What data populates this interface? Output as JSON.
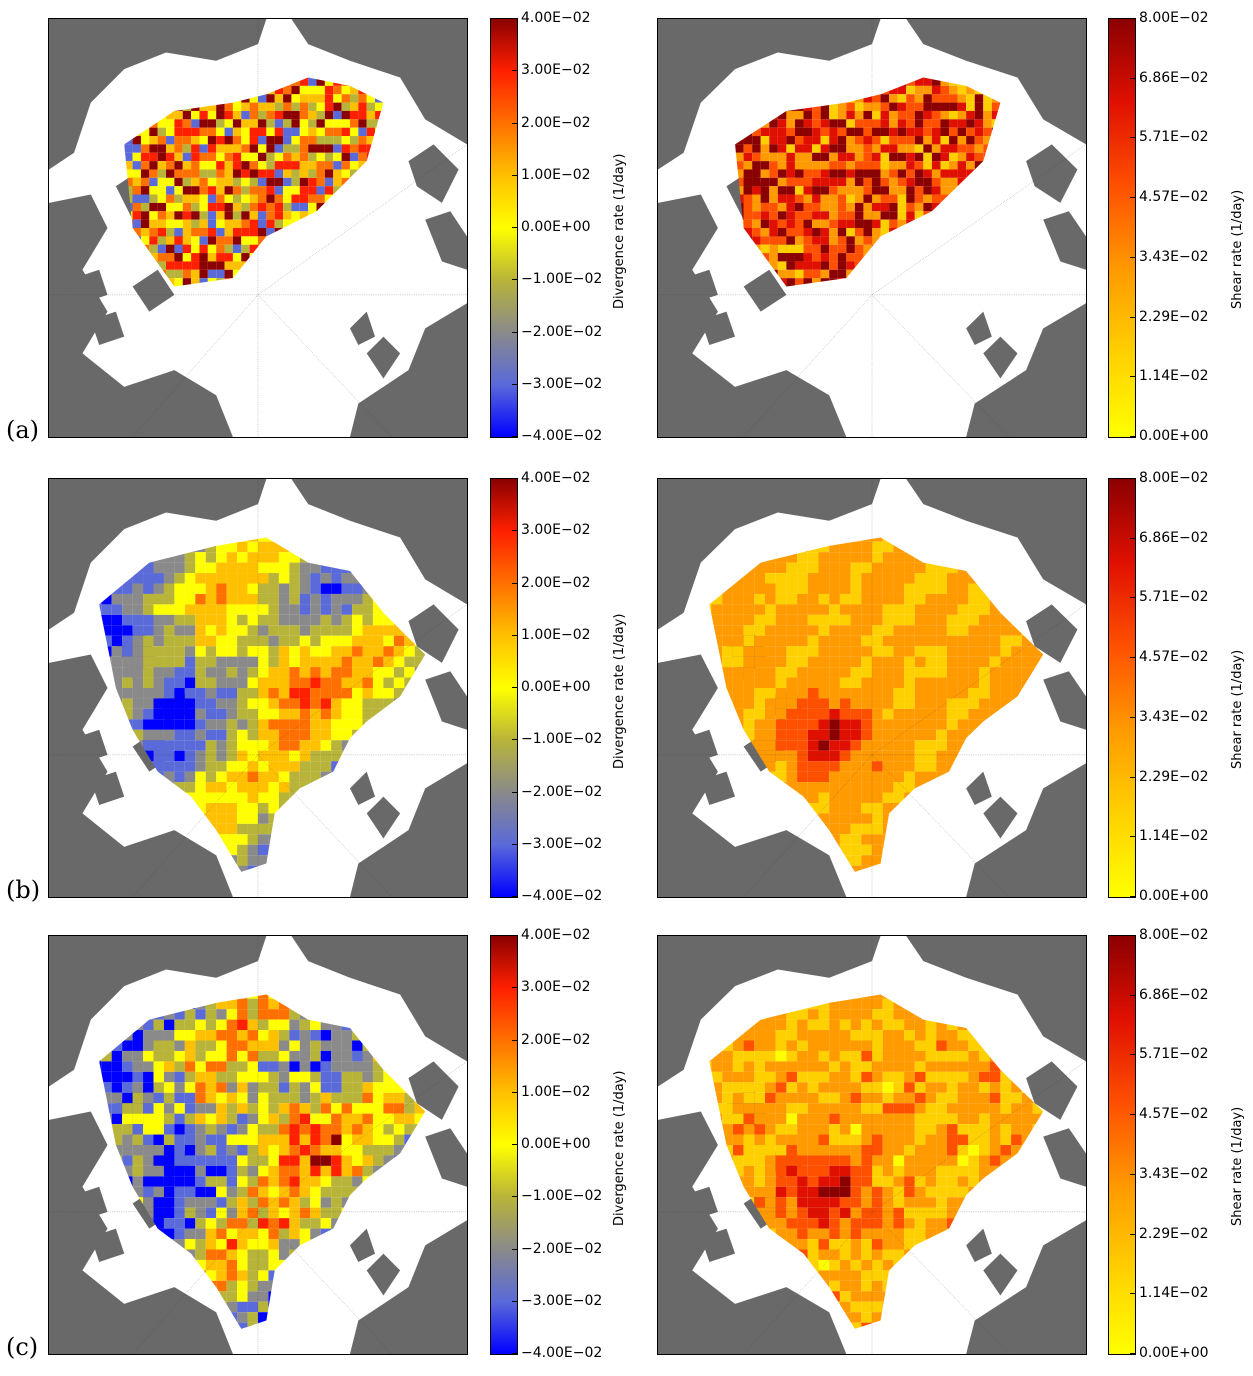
{
  "row_labels": [
    "(a)",
    "(b)",
    "(c)"
  ],
  "colors": {
    "land": "#696969",
    "divergence_scale": [
      "#0000ff",
      "#5a6ad9",
      "#8a8a8a",
      "#b8b43a",
      "#ffff00",
      "#ffc000",
      "#ff7000",
      "#ff2000",
      "#8b0000"
    ],
    "shear_scale": [
      "#ffff00",
      "#ffd000",
      "#ff9a00",
      "#ff5000",
      "#e01000",
      "#8b0000"
    ]
  },
  "divergence_colorbar": {
    "label": "Divergence rate (1/day)",
    "ticks": [
      "4.00E−02",
      "3.00E−02",
      "2.00E−02",
      "1.00E−02",
      "0.00E+00",
      "−1.00E−02",
      "−2.00E−02",
      "−3.00E−02",
      "−4.00E−02"
    ]
  },
  "shear_colorbar": {
    "label": "Shear rate (1/day)",
    "ticks": [
      "8.00E−02",
      "6.86E−02",
      "5.71E−02",
      "4.57E−02",
      "3.43E−02",
      "2.29E−02",
      "1.14E−02",
      "0.00E+00"
    ]
  },
  "chart_data": [
    {
      "type": "heatmap",
      "row": "(a)",
      "variable": "divergence",
      "clim": [
        -0.04,
        0.04
      ],
      "colorbar_label": "Divergence rate (1/day)"
    },
    {
      "type": "heatmap",
      "row": "(a)",
      "variable": "shear",
      "clim": [
        0,
        0.08
      ],
      "colorbar_label": "Shear rate (1/day)"
    },
    {
      "type": "heatmap",
      "row": "(b)",
      "variable": "divergence",
      "clim": [
        -0.04,
        0.04
      ],
      "colorbar_label": "Divergence rate (1/day)"
    },
    {
      "type": "heatmap",
      "row": "(b)",
      "variable": "shear",
      "clim": [
        0,
        0.08
      ],
      "colorbar_label": "Shear rate (1/day)"
    },
    {
      "type": "heatmap",
      "row": "(c)",
      "variable": "divergence",
      "clim": [
        -0.04,
        0.04
      ],
      "colorbar_label": "Divergence rate (1/day)"
    },
    {
      "type": "heatmap",
      "row": "(c)",
      "variable": "shear",
      "clim": [
        0,
        0.08
      ],
      "colorbar_label": "Shear rate (1/day)"
    }
  ]
}
